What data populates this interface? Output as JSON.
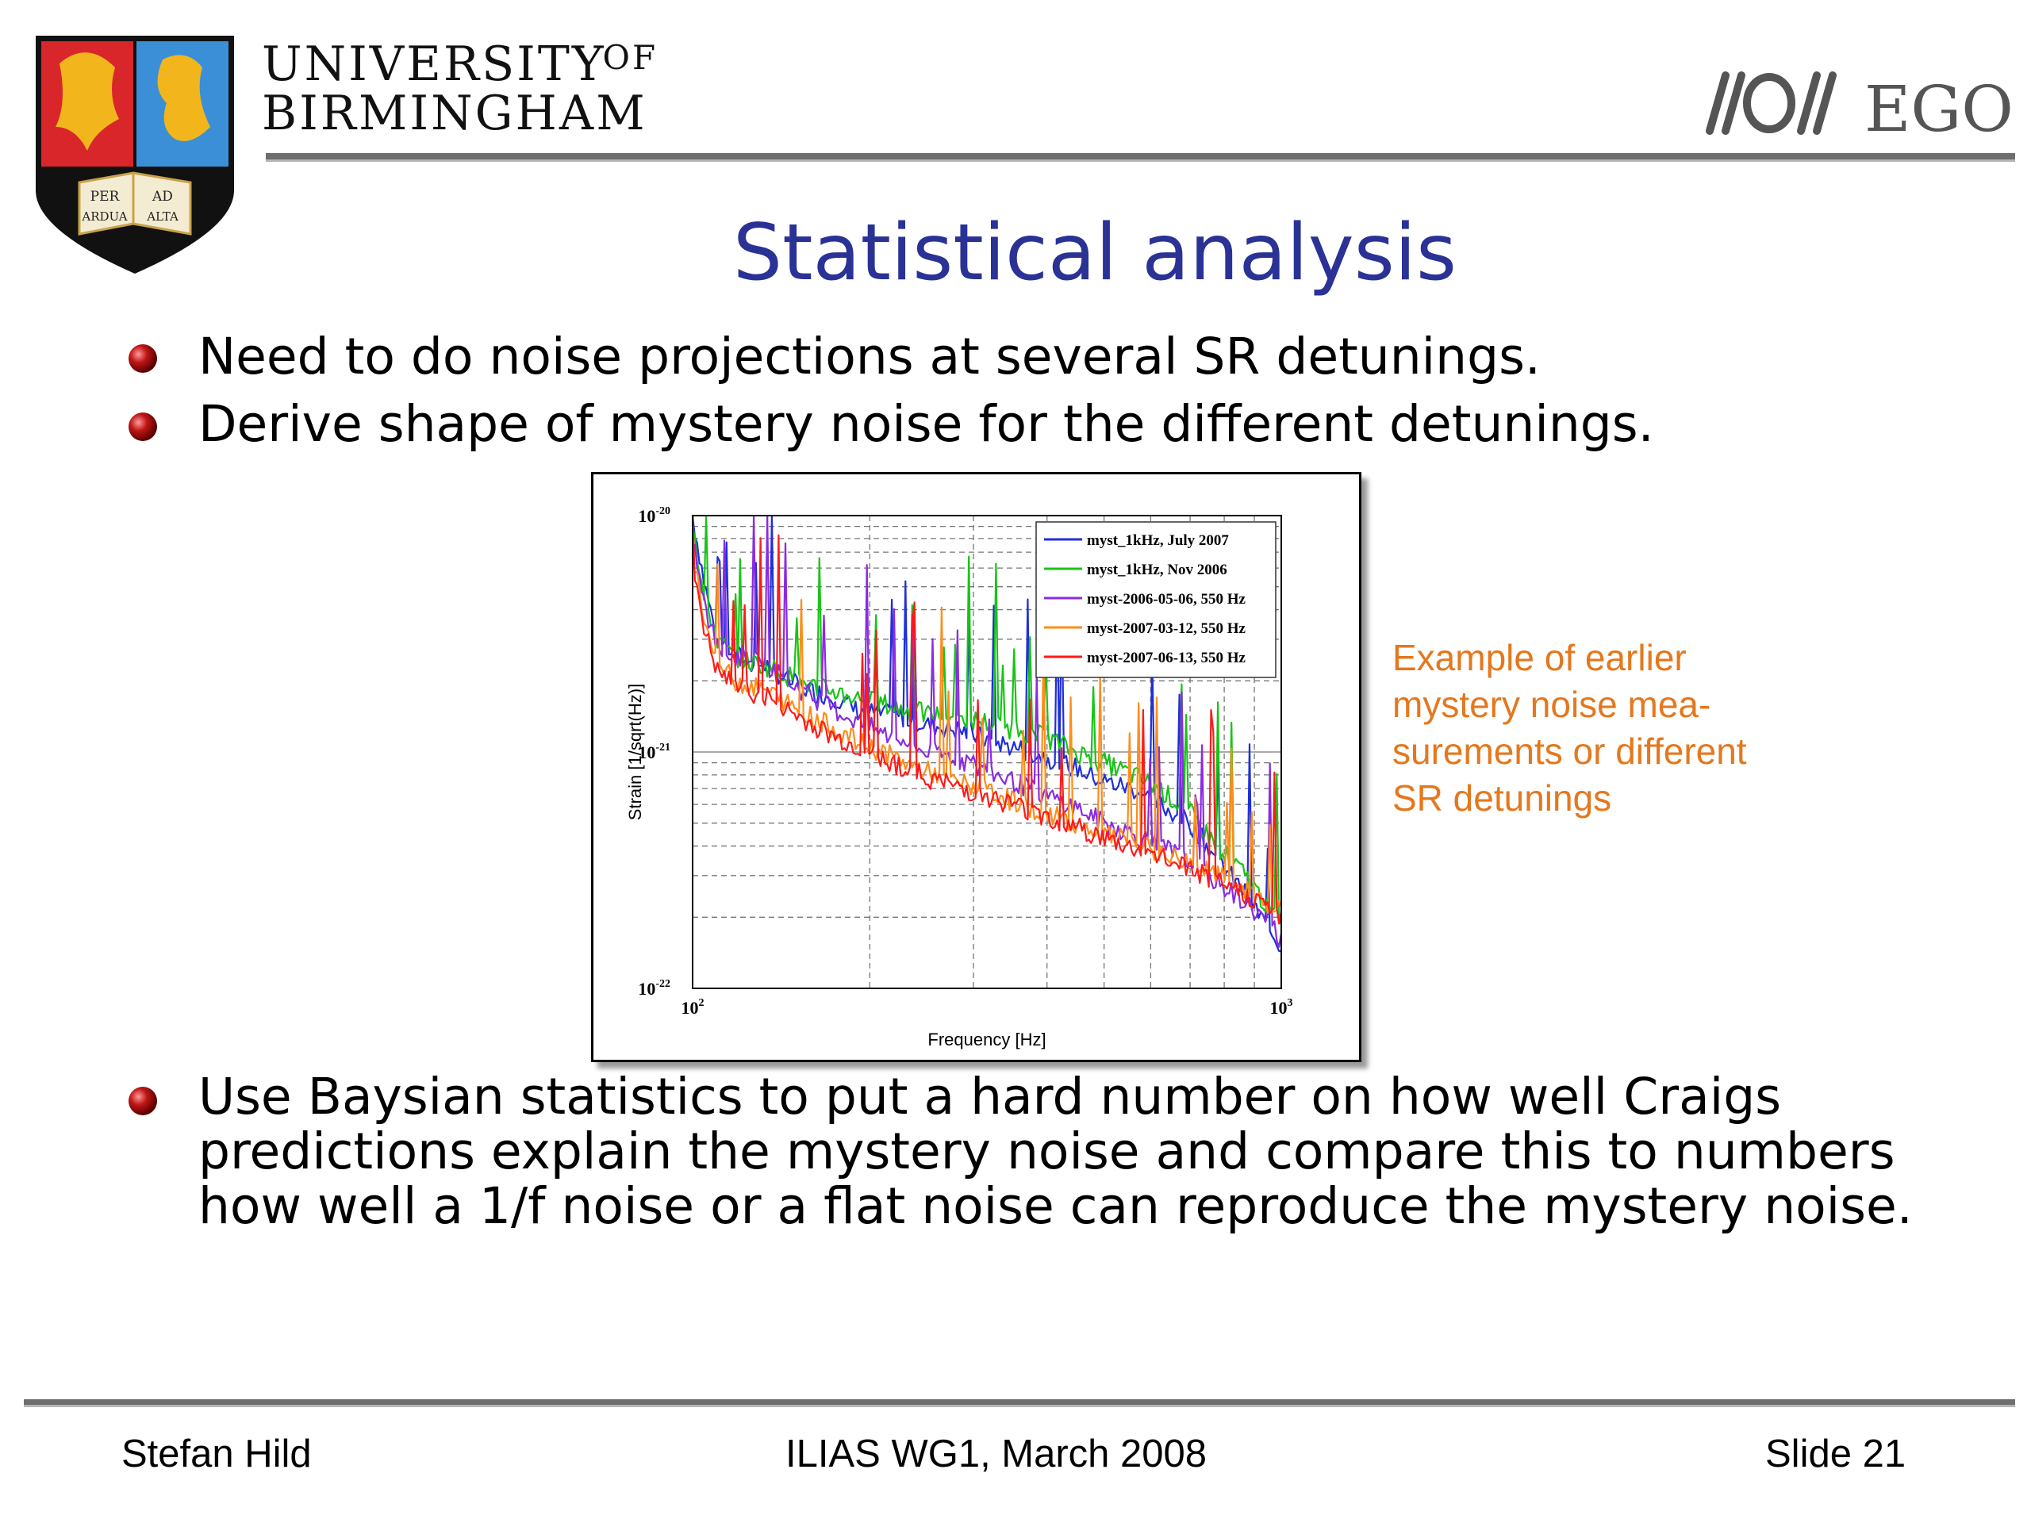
{
  "header": {
    "university_line1": "UNIVERSITY",
    "university_of": "OF",
    "university_line2": "BIRMINGHAM",
    "crest_motto": [
      "PER",
      "AD",
      "ARDUA",
      "ALTA"
    ],
    "ego_logo_text": "EGO"
  },
  "slide": {
    "title": "Statistical analysis",
    "bullets": [
      "Need to do noise projections at several SR detunings.",
      "Derive shape of mystery noise for the different detunings.",
      "Use Baysian statistics to put a hard number on how well Craigs predictions explain the mystery noise and compare this to numbers how well a 1/f noise or a flat noise can reproduce the mystery noise."
    ],
    "caption_lines": [
      "Example of earlier",
      "mystery noise mea-",
      "surements or different",
      "SR detunings"
    ]
  },
  "chart_data": {
    "type": "line",
    "xlabel": "Frequency [Hz]",
    "ylabel": "Strain [1/sqrt(Hz)]",
    "xscale": "log",
    "yscale": "log",
    "xlim": [
      100,
      1000
    ],
    "ylim": [
      1e-22,
      1e-20
    ],
    "x_ticks": [
      {
        "base": "10",
        "exp": "2"
      },
      {
        "base": "10",
        "exp": "3"
      }
    ],
    "y_ticks": [
      {
        "base": "10",
        "exp": "-20"
      },
      {
        "base": "10",
        "exp": "-21"
      },
      {
        "base": "10",
        "exp": "-22"
      }
    ],
    "grid": true,
    "legend_position": "top-right",
    "x": [
      100,
      105,
      110,
      118,
      125,
      135,
      145,
      160,
      175,
      190,
      210,
      230,
      250,
      280,
      310,
      350,
      400,
      450,
      500,
      560,
      620,
      700,
      780,
      870,
      950,
      1000
    ],
    "series": [
      {
        "name": "myst_1kHz, July 2007",
        "color": "#1f2fd8",
        "values": [
          1e-20,
          5e-21,
          3e-21,
          2.6e-21,
          2.4e-21,
          2.3e-21,
          2e-21,
          1.8e-21,
          1.7e-21,
          1.5e-21,
          1.45e-21,
          1.4e-21,
          1.3e-21,
          1.25e-21,
          1.15e-21,
          1.05e-21,
          9.5e-22,
          8.5e-22,
          7.5e-22,
          7e-22,
          6e-22,
          5e-22,
          3.5e-22,
          2.5e-22,
          1.8e-22,
          1.5e-22
        ]
      },
      {
        "name": "myst_1kHz, Nov 2006",
        "color": "#17c417",
        "values": [
          9e-21,
          4.5e-21,
          3e-21,
          2.5e-21,
          2.4e-21,
          2.3e-21,
          2.1e-21,
          1.9e-21,
          1.8e-21,
          1.7e-21,
          1.6e-21,
          1.5e-21,
          1.45e-21,
          1.4e-21,
          1.35e-21,
          1.25e-21,
          1.15e-21,
          1e-21,
          9e-22,
          8e-22,
          7e-22,
          5.5e-22,
          4e-22,
          3e-22,
          2.2e-22,
          1.8e-22
        ]
      },
      {
        "name": "myst-2006-05-06, 550 Hz",
        "color": "#8a2be2",
        "values": [
          8e-21,
          4e-21,
          2.8e-21,
          2.5e-21,
          2.6e-21,
          2.3e-21,
          2e-21,
          1.7e-21,
          1.5e-21,
          1.35e-21,
          1.2e-21,
          1.1e-21,
          1e-21,
          9.5e-22,
          8.5e-22,
          7.5e-22,
          6.5e-22,
          5.8e-22,
          5e-22,
          4.5e-22,
          4e-22,
          3.5e-22,
          2.8e-22,
          2.3e-22,
          1.9e-22,
          1.6e-22
        ]
      },
      {
        "name": "myst-2007-03-12, 550 Hz",
        "color": "#ff8c1a",
        "values": [
          7e-21,
          3.5e-21,
          2.4e-21,
          2e-21,
          1.9e-21,
          1.8e-21,
          1.6e-21,
          1.4e-21,
          1.25e-21,
          1.1e-21,
          1e-21,
          9e-22,
          8.3e-22,
          7.5e-22,
          7e-22,
          6.2e-22,
          5.5e-22,
          5e-22,
          4.5e-22,
          4.1e-22,
          3.8e-22,
          3.4e-22,
          3e-22,
          2.6e-22,
          2.3e-22,
          2.1e-22
        ]
      },
      {
        "name": "myst-2007-06-13, 550 Hz",
        "color": "#ff1a1a",
        "values": [
          6.5e-21,
          3.2e-21,
          2.2e-21,
          1.9e-21,
          1.8e-21,
          1.7e-21,
          1.5e-21,
          1.3e-21,
          1.15e-21,
          1.05e-21,
          9.5e-22,
          8.5e-22,
          7.8e-22,
          7.2e-22,
          6.6e-22,
          6e-22,
          5.3e-22,
          4.8e-22,
          4.3e-22,
          3.9e-22,
          3.6e-22,
          3.2e-22,
          2.8e-22,
          2.5e-22,
          2.2e-22,
          2e-22
        ]
      }
    ]
  },
  "footer": {
    "author": "Stefan Hild",
    "event": "ILIAS WG1, March 2008",
    "slide_number": "Slide 21"
  }
}
